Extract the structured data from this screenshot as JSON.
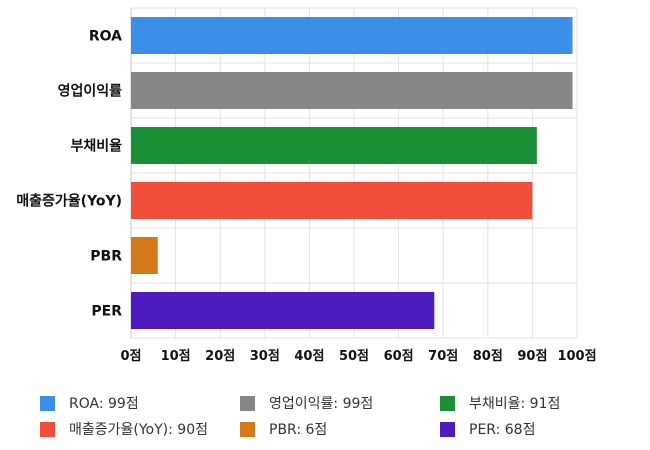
{
  "chart_data": {
    "type": "bar",
    "orientation": "horizontal",
    "categories": [
      "ROA",
      "영업이익률",
      "부채비율",
      "매출증가율(YoY)",
      "PBR",
      "PER"
    ],
    "values": [
      99,
      99,
      91,
      90,
      6,
      68
    ],
    "colors": [
      "#3b8fe8",
      "#878787",
      "#1a8f36",
      "#ef4e38",
      "#d37919",
      "#4e1bbf"
    ],
    "xlim": [
      0,
      100
    ],
    "x_ticks": [
      0,
      10,
      20,
      30,
      40,
      50,
      60,
      70,
      80,
      90,
      100
    ],
    "x_tick_labels": [
      "0점",
      "10점",
      "20점",
      "30점",
      "40점",
      "50점",
      "60점",
      "70점",
      "80점",
      "90점",
      "100점"
    ],
    "grid": true,
    "legend_position": "bottom",
    "legend": [
      {
        "label": "ROA: 99점",
        "color": "#3b8fe8"
      },
      {
        "label": "영업이익률: 99점",
        "color": "#878787"
      },
      {
        "label": "부채비율: 91점",
        "color": "#1a8f36"
      },
      {
        "label": "매출증가율(YoY): 90점",
        "color": "#ef4e38"
      },
      {
        "label": "PBR: 6점",
        "color": "#d37919"
      },
      {
        "label": "PER: 68점",
        "color": "#4e1bbf"
      }
    ]
  }
}
